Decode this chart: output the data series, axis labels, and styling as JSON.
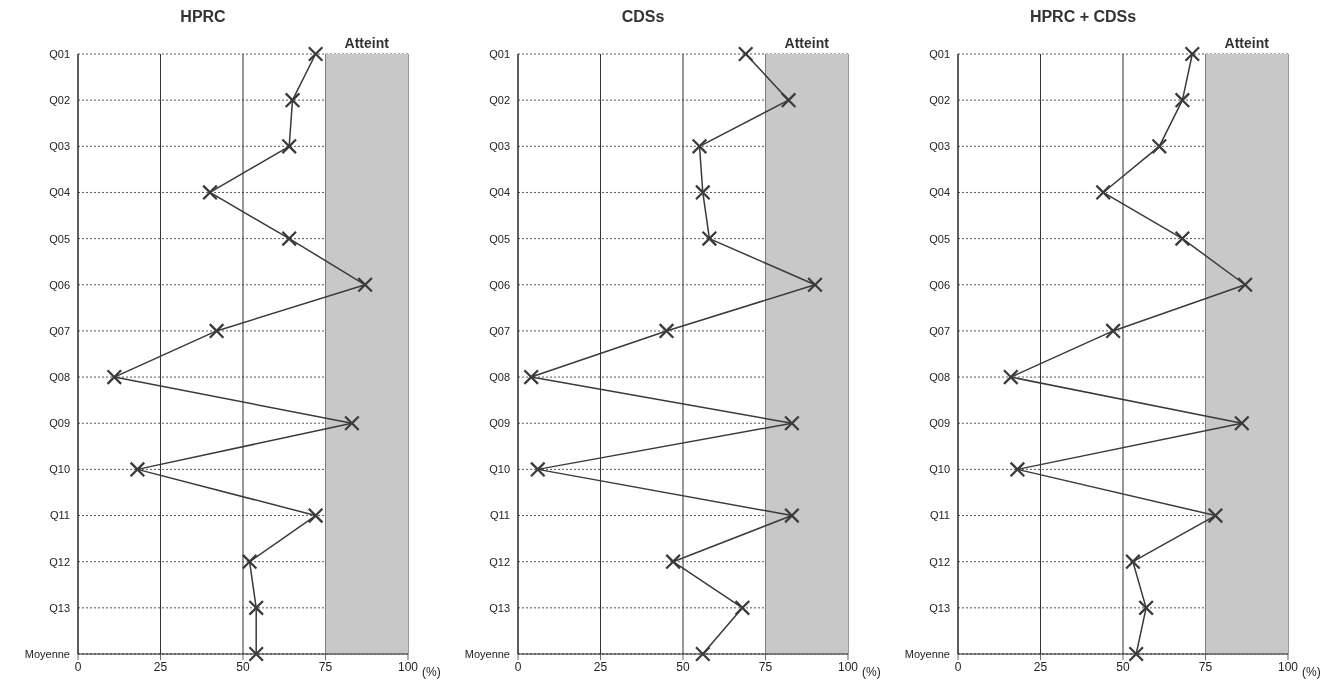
{
  "chart_data": [
    {
      "type": "line",
      "orientation": "horizontal",
      "title": "HPRC",
      "xlabel": "(%)",
      "categories": [
        "Q01",
        "Q02",
        "Q03",
        "Q04",
        "Q05",
        "Q06",
        "Q07",
        "Q08",
        "Q09",
        "Q10",
        "Q11",
        "Q12",
        "Q13",
        "Moyenne"
      ],
      "values": [
        72,
        65,
        64,
        40,
        64,
        87,
        42,
        11,
        83,
        18,
        72,
        52,
        54,
        54
      ],
      "color": "#3a3a3a",
      "xlim": [
        0,
        100
      ],
      "xticks": [
        0,
        25,
        50,
        75,
        100
      ],
      "grid": true,
      "legend": false,
      "marker": "cross",
      "line_style": "solid",
      "bands": [
        {
          "axis": "x",
          "from": 75,
          "to": 100,
          "label": "Atteint",
          "color": "#c8c8c8"
        }
      ]
    },
    {
      "type": "line",
      "orientation": "horizontal",
      "title": "CDSs",
      "xlabel": "(%)",
      "categories": [
        "Q01",
        "Q02",
        "Q03",
        "Q04",
        "Q05",
        "Q06",
        "Q07",
        "Q08",
        "Q09",
        "Q10",
        "Q11",
        "Q12",
        "Q13",
        "Moyenne"
      ],
      "values": [
        69,
        82,
        55,
        56,
        58,
        90,
        45,
        4,
        83,
        6,
        83,
        47,
        68,
        56
      ],
      "color": "#3a3a3a",
      "xlim": [
        0,
        100
      ],
      "xticks": [
        0,
        25,
        50,
        75,
        100
      ],
      "grid": true,
      "legend": false,
      "marker": "cross",
      "line_style": "solid",
      "bands": [
        {
          "axis": "x",
          "from": 75,
          "to": 100,
          "label": "Atteint",
          "color": "#c8c8c8"
        }
      ]
    },
    {
      "type": "line",
      "orientation": "horizontal",
      "title": "HPRC + CDSs",
      "xlabel": "(%)",
      "categories": [
        "Q01",
        "Q02",
        "Q03",
        "Q04",
        "Q05",
        "Q06",
        "Q07",
        "Q08",
        "Q09",
        "Q10",
        "Q11",
        "Q12",
        "Q13",
        "Moyenne"
      ],
      "values": [
        71,
        68,
        61,
        44,
        68,
        87,
        47,
        16,
        86,
        18,
        78,
        53,
        57,
        54
      ],
      "color": "#3a3a3a",
      "xlim": [
        0,
        100
      ],
      "xticks": [
        0,
        25,
        50,
        75,
        100
      ],
      "grid": true,
      "legend": false,
      "marker": "cross",
      "line_style": "solid",
      "bands": [
        {
          "axis": "x",
          "from": 75,
          "to": 100,
          "label": "Atteint",
          "color": "#c8c8c8"
        }
      ]
    }
  ]
}
